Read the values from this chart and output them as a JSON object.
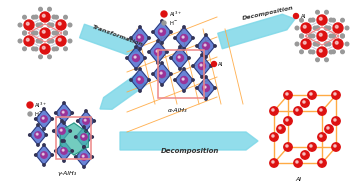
{
  "background_color": "#ffffff",
  "arrow_color": "#7fd8e8",
  "text_transformation": "Transformation",
  "text_decomposition1": "Decomposition",
  "text_decomposition2": "Decomposition",
  "label_alpha_alh3": "α-AlH₃",
  "label_gamma_alh3": "γ-AlH₃",
  "label_al": "Al",
  "red_color": "#dd1111",
  "blue_color": "#4466cc",
  "purple_color": "#993399",
  "gray_color": "#999999",
  "pink_frame_color": "#ee8888",
  "orange_line_color": "#ffaa44",
  "teal_color": "#44bbaa",
  "lavender_bond": "#ccccdd",
  "figsize": [
    3.63,
    1.89
  ],
  "dpi": 100
}
